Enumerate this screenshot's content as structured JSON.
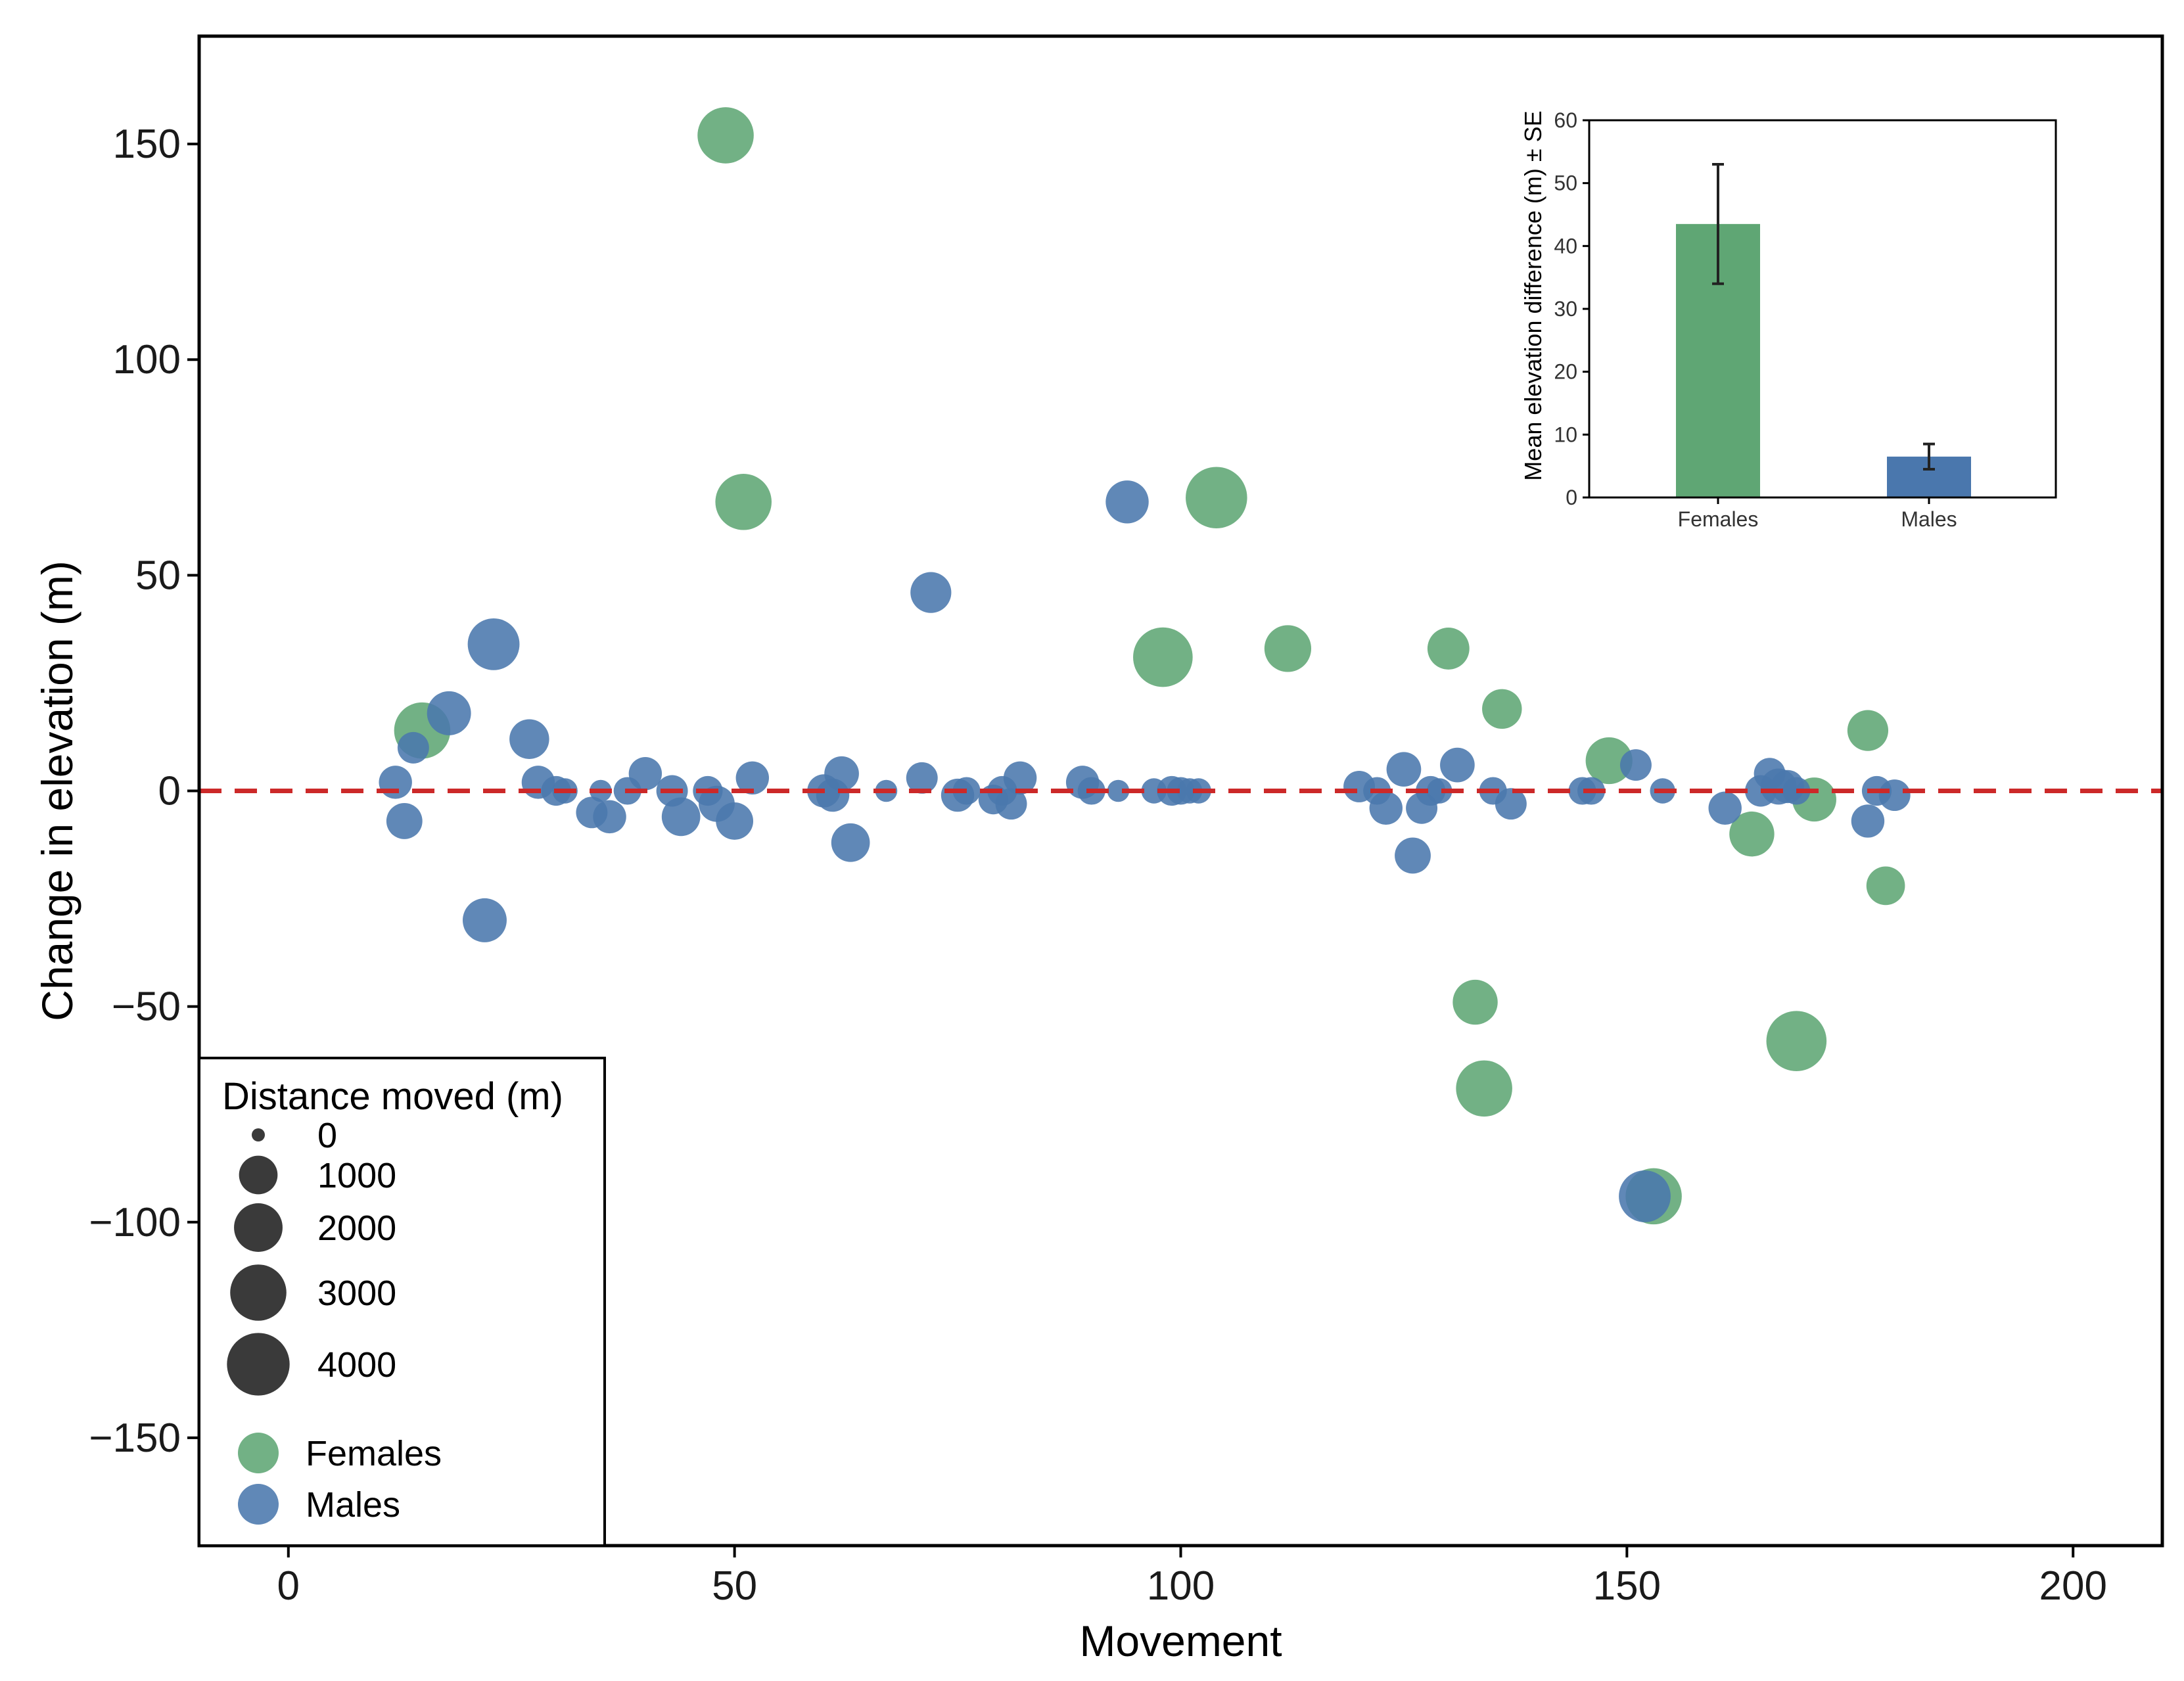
{
  "colors": {
    "females": "#5fa674",
    "males": "#4a77ad",
    "reference_line": "#cc2929",
    "legend_size": "#3a3a3a",
    "error_bar": "#222222"
  },
  "chart_data": [
    {
      "type": "scatter",
      "xlabel": "Movement",
      "ylabel": "Change in elevation (m)",
      "xlim": [
        -10,
        210
      ],
      "ylim": [
        -175,
        175
      ],
      "x_ticks": [
        0,
        50,
        100,
        150,
        200
      ],
      "x_tick_labels": [
        "0",
        "50",
        "100",
        "150",
        "200"
      ],
      "y_ticks": [
        150,
        100,
        50,
        0,
        -50,
        -100,
        -150
      ],
      "y_tick_labels": [
        "150",
        "100",
        "50",
        "0",
        "−50",
        "−100",
        "−150"
      ],
      "reference_line_y": 0,
      "size_legend": {
        "title": "Distance moved (m)",
        "values": [
          0,
          1000,
          2000,
          3000,
          4000
        ],
        "labels": [
          "0",
          "1000",
          "2000",
          "3000",
          "4000"
        ]
      },
      "series": [
        {
          "name": "Females",
          "points": [
            {
              "x": 15,
              "y": 14,
              "size": 3000
            },
            {
              "x": 49,
              "y": 152,
              "size": 3000
            },
            {
              "x": 51,
              "y": 67,
              "size": 3000
            },
            {
              "x": 98,
              "y": 31,
              "size": 3500
            },
            {
              "x": 104,
              "y": 68,
              "size": 3800
            },
            {
              "x": 112,
              "y": 33,
              "size": 1800
            },
            {
              "x": 130,
              "y": 33,
              "size": 1300
            },
            {
              "x": 133,
              "y": -49,
              "size": 1600
            },
            {
              "x": 134,
              "y": -69,
              "size": 3000
            },
            {
              "x": 136,
              "y": 19,
              "size": 1100
            },
            {
              "x": 148,
              "y": 7,
              "size": 1800
            },
            {
              "x": 153,
              "y": -94,
              "size": 3000
            },
            {
              "x": 164,
              "y": -10,
              "size": 1600
            },
            {
              "x": 169,
              "y": -58,
              "size": 3600
            },
            {
              "x": 171,
              "y": -2,
              "size": 1500
            },
            {
              "x": 177,
              "y": 14,
              "size": 1200
            },
            {
              "x": 179,
              "y": -22,
              "size": 1000
            }
          ]
        },
        {
          "name": "Males",
          "points": [
            {
              "x": 12,
              "y": 2,
              "size": 600
            },
            {
              "x": 13,
              "y": -7,
              "size": 800
            },
            {
              "x": 14,
              "y": 10,
              "size": 500
            },
            {
              "x": 18,
              "y": 18,
              "size": 1500
            },
            {
              "x": 22,
              "y": -30,
              "size": 1500
            },
            {
              "x": 23,
              "y": 34,
              "size": 2400
            },
            {
              "x": 27,
              "y": 12,
              "size": 1100
            },
            {
              "x": 28,
              "y": 2,
              "size": 600
            },
            {
              "x": 30,
              "y": 0,
              "size": 400
            },
            {
              "x": 31,
              "y": 0,
              "size": 200
            },
            {
              "x": 34,
              "y": -5,
              "size": 500
            },
            {
              "x": 35,
              "y": 0,
              "size": 100
            },
            {
              "x": 36,
              "y": -6,
              "size": 600
            },
            {
              "x": 38,
              "y": 0,
              "size": 300
            },
            {
              "x": 40,
              "y": 4,
              "size": 600
            },
            {
              "x": 43,
              "y": 0,
              "size": 500
            },
            {
              "x": 44,
              "y": -6,
              "size": 1000
            },
            {
              "x": 47,
              "y": 0,
              "size": 400
            },
            {
              "x": 48,
              "y": -3,
              "size": 800
            },
            {
              "x": 50,
              "y": -7,
              "size": 900
            },
            {
              "x": 52,
              "y": 3,
              "size": 600
            },
            {
              "x": 60,
              "y": 0,
              "size": 600
            },
            {
              "x": 61,
              "y": -1,
              "size": 600
            },
            {
              "x": 62,
              "y": 4,
              "size": 700
            },
            {
              "x": 63,
              "y": -12,
              "size": 1000
            },
            {
              "x": 67,
              "y": 0,
              "size": 100
            },
            {
              "x": 71,
              "y": 3,
              "size": 500
            },
            {
              "x": 72,
              "y": 46,
              "size": 1200
            },
            {
              "x": 75,
              "y": -1,
              "size": 600
            },
            {
              "x": 76,
              "y": 0,
              "size": 300
            },
            {
              "x": 79,
              "y": -2,
              "size": 400
            },
            {
              "x": 80,
              "y": 0,
              "size": 400
            },
            {
              "x": 81,
              "y": -3,
              "size": 500
            },
            {
              "x": 82,
              "y": 3,
              "size": 600
            },
            {
              "x": 89,
              "y": 2,
              "size": 600
            },
            {
              "x": 90,
              "y": 0,
              "size": 300
            },
            {
              "x": 93,
              "y": 0,
              "size": 100
            },
            {
              "x": 94,
              "y": 67,
              "size": 1400
            },
            {
              "x": 97,
              "y": 0,
              "size": 200
            },
            {
              "x": 99,
              "y": 0,
              "size": 400
            },
            {
              "x": 100,
              "y": 0,
              "size": 300
            },
            {
              "x": 101,
              "y": 0,
              "size": 200
            },
            {
              "x": 102,
              "y": 0,
              "size": 200
            },
            {
              "x": 120,
              "y": 1,
              "size": 500
            },
            {
              "x": 122,
              "y": 0,
              "size": 300
            },
            {
              "x": 123,
              "y": -4,
              "size": 600
            },
            {
              "x": 125,
              "y": 5,
              "size": 700
            },
            {
              "x": 126,
              "y": -15,
              "size": 800
            },
            {
              "x": 127,
              "y": -4,
              "size": 500
            },
            {
              "x": 128,
              "y": 0,
              "size": 400
            },
            {
              "x": 129,
              "y": 0,
              "size": 200
            },
            {
              "x": 131,
              "y": 6,
              "size": 700
            },
            {
              "x": 135,
              "y": 0,
              "size": 300
            },
            {
              "x": 137,
              "y": -3,
              "size": 500
            },
            {
              "x": 145,
              "y": 0,
              "size": 300
            },
            {
              "x": 146,
              "y": 0,
              "size": 300
            },
            {
              "x": 151,
              "y": 6,
              "size": 500
            },
            {
              "x": 152,
              "y": -94,
              "size": 2400
            },
            {
              "x": 154,
              "y": 0,
              "size": 200
            },
            {
              "x": 161,
              "y": -4,
              "size": 600
            },
            {
              "x": 165,
              "y": 0,
              "size": 500
            },
            {
              "x": 166,
              "y": 4,
              "size": 500
            },
            {
              "x": 167,
              "y": 1,
              "size": 800
            },
            {
              "x": 168,
              "y": 1,
              "size": 600
            },
            {
              "x": 169,
              "y": 0,
              "size": 300
            },
            {
              "x": 177,
              "y": -7,
              "size": 600
            },
            {
              "x": 178,
              "y": 0,
              "size": 400
            },
            {
              "x": 180,
              "y": -1,
              "size": 500
            }
          ]
        }
      ]
    },
    {
      "type": "bar",
      "title": "",
      "xlabel": "",
      "ylabel": "Mean elevation difference (m) ± SE",
      "categories": [
        "Females",
        "Males"
      ],
      "values": [
        43.5,
        6.5
      ],
      "errors": [
        9.5,
        2.0
      ],
      "ylim": [
        0,
        60
      ],
      "y_ticks": [
        0,
        10,
        20,
        30,
        40,
        50,
        60
      ],
      "y_tick_labels": [
        "0",
        "10",
        "20",
        "30",
        "40",
        "50",
        "60"
      ]
    }
  ]
}
